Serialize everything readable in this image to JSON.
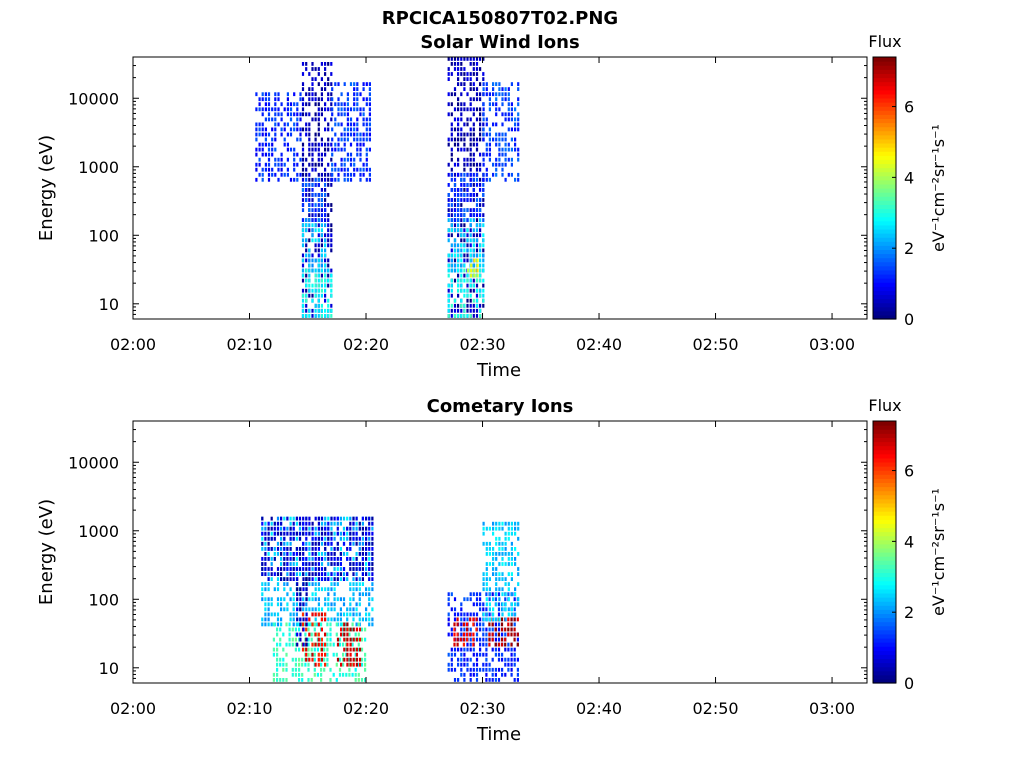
{
  "figure_title": "RPCICA150807T02.PNG",
  "colors": {
    "background": "#ffffff",
    "colormap": "jet",
    "axis": "#000000"
  },
  "chart_data": [
    {
      "type": "heatmap",
      "title": "Solar Wind Ions",
      "xlabel": "Time",
      "ylabel": "Energy (eV)",
      "yscale": "log",
      "xlim": [
        "02:00",
        "03:03"
      ],
      "ylim": [
        6,
        40000
      ],
      "x_ticks": [
        "02:00",
        "02:10",
        "02:20",
        "02:30",
        "02:40",
        "02:50",
        "03:00"
      ],
      "y_ticks": [
        "10",
        "100",
        "1000",
        "10000"
      ],
      "y_tick_values": [
        10,
        100,
        1000,
        10000
      ],
      "colorbar": {
        "label": "Flux",
        "units": "eV⁻¹cm⁻²sr⁻¹s⁻¹",
        "range": [
          0,
          7.4
        ],
        "ticks": [
          "0",
          "2",
          "4",
          "6"
        ]
      },
      "grid": false,
      "segments": [
        {
          "x_start": "02:14:30",
          "x_end": "02:17:00",
          "e_min": 6,
          "e_max": 30000,
          "flux": 0.4
        },
        {
          "x_start": "02:14:30",
          "x_end": "02:17:00",
          "e_min": 6,
          "e_max": 30,
          "flux": 2.8
        },
        {
          "x_start": "02:14:30",
          "x_end": "02:16:30",
          "e_min": 30,
          "e_max": 150,
          "flux": 2.3
        },
        {
          "x_start": "02:14:30",
          "x_end": "02:16:30",
          "e_min": 150,
          "e_max": 600,
          "flux": 1.4
        },
        {
          "x_start": "02:10:30",
          "x_end": "02:14:30",
          "e_min": 600,
          "e_max": 12000,
          "flux": 1.2
        },
        {
          "x_start": "02:17:00",
          "x_end": "02:20:30",
          "e_min": 600,
          "e_max": 15000,
          "flux": 1.3
        },
        {
          "x_start": "02:27:00",
          "x_end": "02:30:00",
          "e_min": 6,
          "e_max": 40000,
          "flux": 0.4
        },
        {
          "x_start": "02:27:00",
          "x_end": "02:30:00",
          "e_min": 6,
          "e_max": 30,
          "flux": 2.9
        },
        {
          "x_start": "02:27:00",
          "x_end": "02:30:00",
          "e_min": 30,
          "e_max": 150,
          "flux": 2.4
        },
        {
          "x_start": "02:28:40",
          "x_end": "02:29:40",
          "e_min": 25,
          "e_max": 45,
          "flux": 4.5
        },
        {
          "x_start": "02:27:00",
          "x_end": "02:30:00",
          "e_min": 150,
          "e_max": 700,
          "flux": 1.3
        },
        {
          "x_start": "02:30:00",
          "x_end": "02:33:00",
          "e_min": 600,
          "e_max": 15000,
          "flux": 1.4
        }
      ]
    },
    {
      "type": "heatmap",
      "title": "Cometary Ions",
      "xlabel": "Time",
      "ylabel": "Energy (eV)",
      "yscale": "log",
      "xlim": [
        "02:00",
        "03:03"
      ],
      "ylim": [
        6,
        40000
      ],
      "x_ticks": [
        "02:00",
        "02:10",
        "02:20",
        "02:30",
        "02:40",
        "02:50",
        "03:00"
      ],
      "y_ticks": [
        "10",
        "100",
        "1000",
        "10000"
      ],
      "y_tick_values": [
        10,
        100,
        1000,
        10000
      ],
      "colorbar": {
        "label": "Flux",
        "units": "eV⁻¹cm⁻²sr⁻¹s⁻¹",
        "range": [
          0,
          7.4
        ],
        "ticks": [
          "0",
          "2",
          "4",
          "6"
        ]
      },
      "grid": false,
      "segments": [
        {
          "x_start": "02:11:00",
          "x_end": "02:20:30",
          "e_min": 40,
          "e_max": 1500,
          "flux": 2.3
        },
        {
          "x_start": "02:11:00",
          "x_end": "02:20:30",
          "e_min": 200,
          "e_max": 1500,
          "flux": 0.6
        },
        {
          "x_start": "02:12:00",
          "x_end": "02:20:00",
          "e_min": 6,
          "e_max": 40,
          "flux": 3.2
        },
        {
          "x_start": "02:14:30",
          "x_end": "02:16:30",
          "e_min": 10,
          "e_max": 60,
          "flux": 6.5
        },
        {
          "x_start": "02:17:30",
          "x_end": "02:19:30",
          "e_min": 10,
          "e_max": 40,
          "flux": 6.8
        },
        {
          "x_start": "02:14:00",
          "x_end": "02:15:00",
          "e_min": 20,
          "e_max": 200,
          "flux": 0.4
        },
        {
          "x_start": "02:27:00",
          "x_end": "02:33:00",
          "e_min": 6,
          "e_max": 120,
          "flux": 1.2
        },
        {
          "x_start": "02:27:30",
          "x_end": "02:29:30",
          "e_min": 20,
          "e_max": 50,
          "flux": 6.6
        },
        {
          "x_start": "02:30:30",
          "x_end": "02:33:00",
          "e_min": 20,
          "e_max": 50,
          "flux": 7.0
        },
        {
          "x_start": "02:30:00",
          "x_end": "02:33:00",
          "e_min": 50,
          "e_max": 1300,
          "flux": 2.4
        }
      ]
    }
  ]
}
